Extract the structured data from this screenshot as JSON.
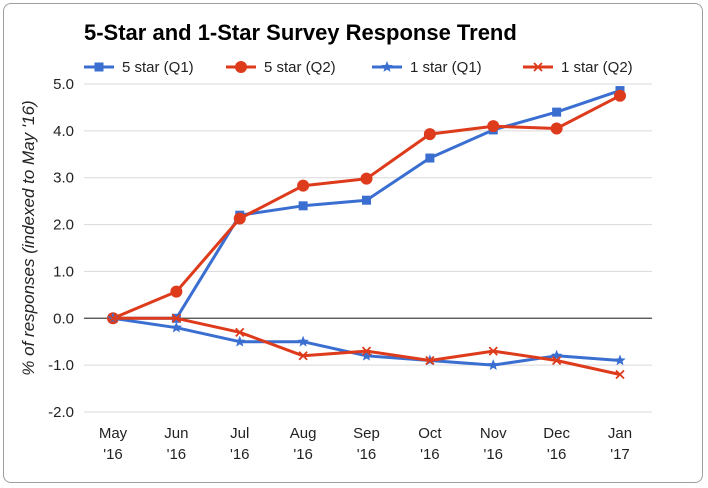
{
  "chart_data": {
    "type": "line",
    "title": "5-Star and 1-Star Survey Response Trend",
    "ylabel": "% of responses (indexed to May '16)",
    "xlabel": "",
    "ylim": [
      -2.0,
      5.0
    ],
    "yticks": [
      "5.0",
      "4.0",
      "3.0",
      "2.0",
      "1.0",
      "0.0",
      "-1.0",
      "-2.0"
    ],
    "ytick_values": [
      5,
      4,
      3,
      2,
      1,
      0,
      -1,
      -2
    ],
    "categories": [
      [
        "May",
        "'16"
      ],
      [
        "Jun",
        "'16"
      ],
      [
        "Jul",
        "'16"
      ],
      [
        "Aug",
        "'16"
      ],
      [
        "Sep",
        "'16"
      ],
      [
        "Oct",
        "'16"
      ],
      [
        "Nov",
        "'16"
      ],
      [
        "Dec",
        "'16"
      ],
      [
        "Jan",
        "'17"
      ]
    ],
    "grid": true,
    "legend_position": "top",
    "series": [
      {
        "name": "5 star (Q1)",
        "color": "#3a6fd1",
        "marker": "square",
        "values": [
          0.0,
          0.0,
          2.2,
          2.4,
          2.52,
          3.42,
          4.02,
          4.4,
          4.86
        ]
      },
      {
        "name": "5 star (Q2)",
        "color": "#dd3b1b",
        "marker": "circle",
        "values": [
          0.0,
          0.57,
          2.13,
          2.83,
          2.98,
          3.93,
          4.1,
          4.05,
          4.75
        ]
      },
      {
        "name": "1 star (Q1)",
        "color": "#3a6fd1",
        "marker": "star",
        "values": [
          0.0,
          -0.2,
          -0.5,
          -0.5,
          -0.8,
          -0.9,
          -1.0,
          -0.8,
          -0.9
        ]
      },
      {
        "name": "1 star (Q2)",
        "color": "#dd3b1b",
        "marker": "x",
        "values": [
          0.0,
          0.0,
          -0.3,
          -0.8,
          -0.7,
          -0.9,
          -0.7,
          -0.9,
          -1.2
        ]
      }
    ]
  }
}
